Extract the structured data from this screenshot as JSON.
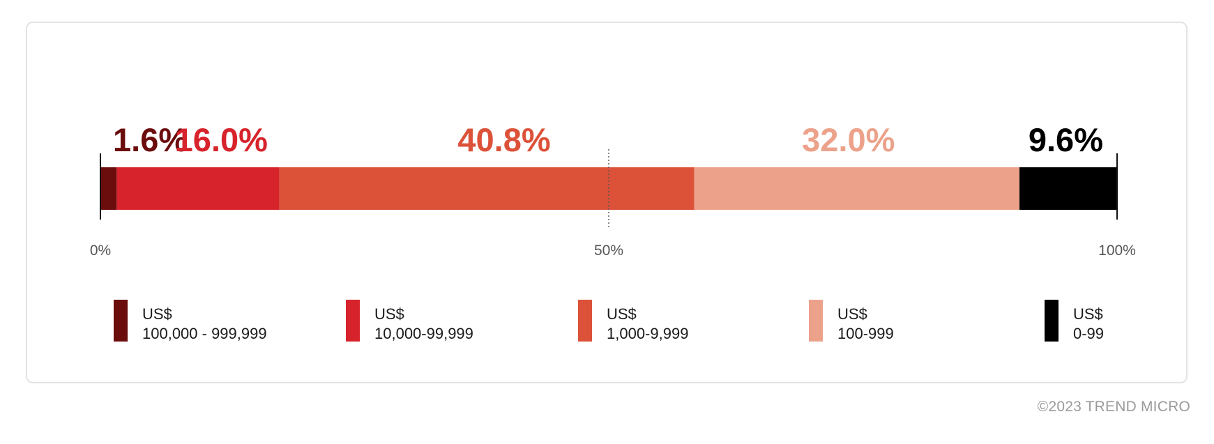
{
  "chart_data": {
    "type": "bar",
    "orientation": "horizontal-stacked-100",
    "axis": {
      "range": [
        0,
        100
      ],
      "ticks": [
        "0%",
        "50%",
        "100%"
      ],
      "midline": "dotted"
    },
    "segments": [
      {
        "label_line1": "US$",
        "label_line2": "100,000 - 999,999",
        "value": 1.6,
        "value_label": "1.6%",
        "color": "#6b0d0d",
        "text_color": "#6b0d0d"
      },
      {
        "label_line1": "US$",
        "label_line2": "10,000-99,999",
        "value": 16.0,
        "value_label": "16.0%",
        "color": "#d7232b",
        "text_color": "#d7232b"
      },
      {
        "label_line1": "US$",
        "label_line2": "1,000-9,999",
        "value": 40.8,
        "value_label": "40.8%",
        "color": "#dc5239",
        "text_color": "#dc5239"
      },
      {
        "label_line1": "US$",
        "label_line2": "100-999",
        "value": 32.0,
        "value_label": "32.0%",
        "color": "#eca28a",
        "text_color": "#eca28a"
      },
      {
        "label_line1": "US$",
        "label_line2": "0-99",
        "value": 9.6,
        "value_label": "9.6%",
        "color": "#000000",
        "text_color": "#000000"
      }
    ],
    "legend_placement": "bottom",
    "grid": false
  },
  "footer": {
    "copyright": "©2023 TREND MICRO"
  }
}
